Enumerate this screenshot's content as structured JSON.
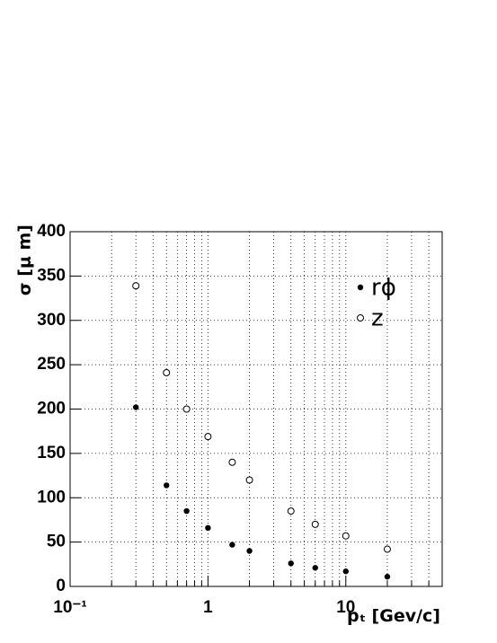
{
  "chart_data": {
    "type": "scatter",
    "xlabel": "pₜ [Gev/c]",
    "ylabel": "σ [μ m]",
    "xscale": "log",
    "xlim": [
      0.1,
      50
    ],
    "ylim": [
      0,
      400
    ],
    "xticks": [
      {
        "value": 0.1,
        "label": "10⁻¹"
      },
      1,
      10
    ],
    "xminorticks": [
      0.2,
      0.3,
      0.4,
      0.5,
      0.6,
      0.7,
      0.8,
      0.9,
      2,
      3,
      4,
      5,
      6,
      7,
      8,
      9,
      20,
      30,
      40
    ],
    "yticks": [
      0,
      50,
      100,
      150,
      200,
      250,
      300,
      350,
      400
    ],
    "grid": true,
    "legend": "upper right",
    "series": [
      {
        "name": "rϕ",
        "color": "#000000",
        "marker": "filled",
        "x": [
          0.3,
          0.5,
          0.7,
          1,
          1.5,
          2,
          4,
          6,
          10,
          20
        ],
        "values": [
          202,
          114,
          85,
          66,
          47,
          40,
          26,
          21,
          17,
          11
        ]
      },
      {
        "name": "z",
        "color": "#000000",
        "marker": "open",
        "x": [
          0.3,
          0.5,
          0.7,
          1,
          1.5,
          2,
          4,
          6,
          10,
          20
        ],
        "values": [
          339,
          241,
          200,
          169,
          140,
          120,
          85,
          70,
          57,
          42
        ]
      }
    ]
  }
}
